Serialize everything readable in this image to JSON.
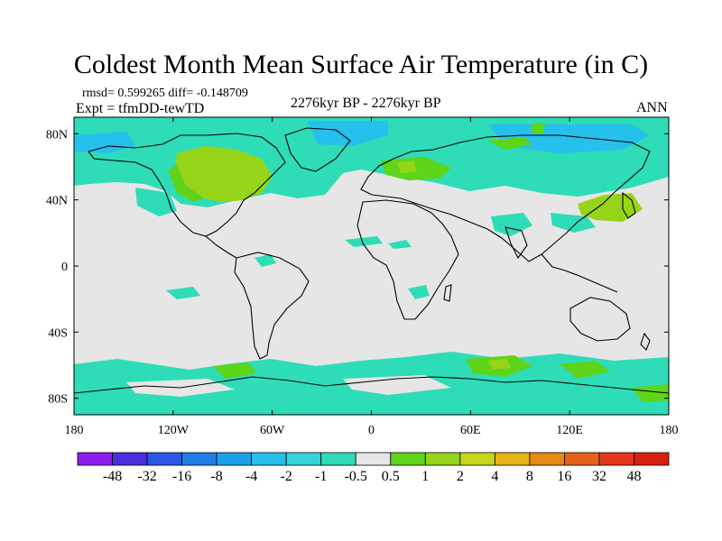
{
  "title": "Coldest Month Mean Surface Air Temperature (in C)",
  "stats_text": "rmsd= 0.599265 diff= -0.148709",
  "expt_text": "Expt = tfmDD-tewTD",
  "period_text": "2276kyr BP - 2276kyr BP",
  "season_text": "ANN",
  "map": {
    "lon_range": [
      -180,
      180
    ],
    "lat_range": [
      -90,
      90
    ],
    "lon_tick_labels": [
      "180",
      "120W",
      "60W",
      "0",
      "60E",
      "120E",
      "180"
    ],
    "lat_tick_labels": [
      "80N",
      "40N",
      "0",
      "40S",
      "80S"
    ],
    "background_color": "#e6e6e6"
  },
  "colorbar": {
    "labels": [
      "-48",
      "-32",
      "-16",
      "-8",
      "-4",
      "-2",
      "-1",
      "-0.5",
      "0.5",
      "1",
      "2",
      "4",
      "8",
      "16",
      "32",
      "48"
    ],
    "colors": [
      "#8c1cf0",
      "#4a2ee0",
      "#2a56e8",
      "#1e7ee6",
      "#1aa0ea",
      "#26c0ec",
      "#35d4dc",
      "#2edcb8",
      "#e6e6e6",
      "#5ed41a",
      "#96d41a",
      "#c8d41a",
      "#e6b414",
      "#e68a14",
      "#e6601a",
      "#e6361a",
      "#d8200e"
    ]
  }
}
